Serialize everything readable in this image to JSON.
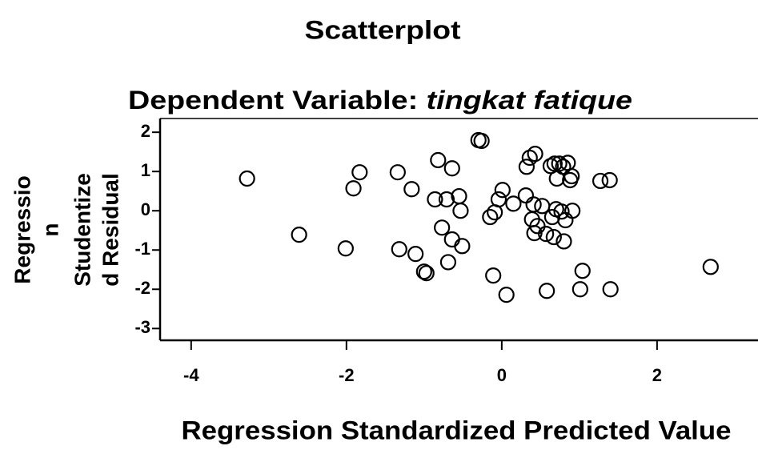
{
  "chart_data": {
    "type": "scatter",
    "title": "Scatterplot",
    "subtitle": "Dependent Variable:",
    "dependent_variable": "tingkat fatique",
    "x_label": "Regression Standardized Predicted Value",
    "y_label": [
      "Regressio",
      "n",
      "Studentize",
      "d Residual"
    ],
    "color": "#000000",
    "xlim": [
      -4.4,
      3.3
    ],
    "xticks": [
      -4,
      -2,
      0,
      2
    ],
    "ylim": [
      -3.3,
      2.35
    ],
    "yticks": [
      -3,
      -2,
      -1,
      0,
      1,
      2
    ],
    "series": [
      {
        "x": [
          -3.28,
          -2.61,
          -2.01,
          -1.91,
          -1.83,
          -1.34,
          -1.32,
          -1.16,
          -1.11,
          -1.0,
          -0.97,
          -0.82,
          -0.86,
          -0.77,
          -0.71,
          -0.69,
          -0.64,
          -0.64,
          -0.55,
          -0.53,
          -0.51,
          -0.3,
          -0.26,
          -0.15,
          -0.11,
          -0.09,
          -0.04,
          0.01,
          0.06,
          0.15,
          0.31,
          0.32,
          0.36,
          0.41,
          0.39,
          0.42,
          0.43,
          0.46,
          0.52,
          0.57,
          0.58,
          0.63,
          0.65,
          0.67,
          0.68,
          0.7,
          0.71,
          0.74,
          0.77,
          0.79,
          0.8,
          0.82,
          0.85,
          0.88,
          0.91,
          0.9,
          1.01,
          1.04,
          1.27,
          1.39,
          1.4,
          2.69
        ],
        "values": [
          0.82,
          -0.61,
          -0.96,
          0.57,
          0.98,
          0.98,
          -0.98,
          0.55,
          -1.1,
          -1.55,
          -1.59,
          1.29,
          0.29,
          -0.43,
          0.29,
          -1.31,
          1.08,
          -0.73,
          0.37,
          0.0,
          -0.9,
          1.8,
          1.78,
          -0.16,
          -1.65,
          -0.04,
          0.29,
          0.53,
          -2.14,
          0.18,
          0.39,
          1.12,
          1.35,
          0.16,
          -0.22,
          -0.57,
          1.45,
          -0.39,
          0.12,
          -0.59,
          -2.04,
          1.14,
          -0.16,
          -0.67,
          1.2,
          0.04,
          0.82,
          1.2,
          -0.02,
          1.12,
          -0.78,
          -0.24,
          1.22,
          0.78,
          0.0,
          0.88,
          -2.0,
          -1.53,
          0.76,
          0.78,
          -2.0,
          -1.43
        ]
      }
    ]
  }
}
